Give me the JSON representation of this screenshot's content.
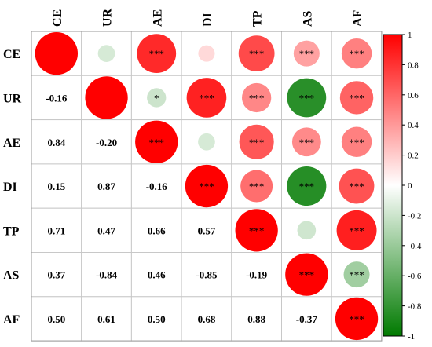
{
  "chart_data": {
    "type": "heatmap",
    "variables": [
      "CE",
      "UR",
      "AE",
      "DI",
      "TP",
      "AS",
      "AF"
    ],
    "correlations": [
      [
        1.0,
        -0.16,
        0.84,
        0.15,
        0.71,
        0.37,
        0.5
      ],
      [
        -0.16,
        1.0,
        -0.2,
        0.87,
        0.47,
        -0.84,
        0.61
      ],
      [
        0.84,
        -0.2,
        1.0,
        -0.16,
        0.66,
        0.46,
        0.5
      ],
      [
        0.15,
        0.87,
        -0.16,
        1.0,
        0.57,
        -0.85,
        0.68
      ],
      [
        0.71,
        0.47,
        0.66,
        0.57,
        1.0,
        -0.19,
        0.88
      ],
      [
        0.37,
        -0.84,
        0.46,
        -0.85,
        -0.19,
        1.0,
        -0.37
      ],
      [
        0.5,
        0.61,
        0.5,
        0.68,
        0.88,
        -0.37,
        1.0
      ]
    ],
    "significance_upper": [
      [
        null,
        "",
        "***",
        "",
        "***",
        "***",
        "***"
      ],
      [
        null,
        null,
        "*",
        "***",
        "***",
        "***",
        "***"
      ],
      [
        null,
        null,
        "***",
        "",
        "***",
        "***",
        "***"
      ],
      [
        null,
        null,
        null,
        "***",
        "***",
        "***",
        "***"
      ],
      [
        null,
        null,
        null,
        null,
        "***",
        "",
        "***"
      ],
      [
        null,
        null,
        null,
        null,
        null,
        "***",
        "***"
      ],
      [
        null,
        null,
        null,
        null,
        null,
        null,
        "***"
      ]
    ],
    "lower_triangle": "numbers",
    "upper_triangle": "circles",
    "colorbar": {
      "min": -1,
      "max": 1,
      "ticks": [
        "1",
        "0.8",
        "0.6",
        "0.4",
        "0.2",
        "0",
        "-0.2",
        "-0.4",
        "-0.6",
        "-0.8",
        "-1"
      ],
      "colors": {
        "positive": "#ff0000",
        "zero": "#ffffff",
        "negative": "#007a00"
      }
    },
    "grid": true
  }
}
